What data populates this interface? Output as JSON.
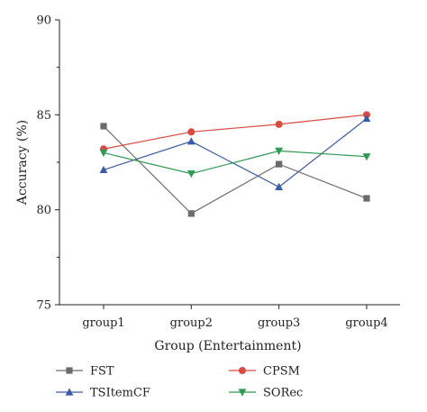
{
  "chart_data": {
    "type": "line",
    "title": "",
    "xlabel": "Group (Entertainment)",
    "ylabel": "Accuracy (%)",
    "categories": [
      "group1",
      "group2",
      "group3",
      "group4"
    ],
    "ylim": [
      75,
      90
    ],
    "yticks": [
      75,
      80,
      85,
      90
    ],
    "grid": false,
    "legend_position": "bottom",
    "series": [
      {
        "name": "FST",
        "values": [
          84.4,
          79.8,
          82.4,
          80.6
        ],
        "color": "#6b6b6b",
        "marker": "square"
      },
      {
        "name": "CPSM",
        "values": [
          83.2,
          84.1,
          84.5,
          85.0
        ],
        "color": "#d94a3f",
        "marker": "circle"
      },
      {
        "name": "TSItemCF",
        "values": [
          82.1,
          83.6,
          81.2,
          84.8
        ],
        "color": "#3a5ca8",
        "marker": "triangle-up"
      },
      {
        "name": "SORec",
        "values": [
          83.0,
          81.9,
          83.1,
          82.8
        ],
        "color": "#2e9a52",
        "marker": "triangle-down"
      }
    ]
  }
}
